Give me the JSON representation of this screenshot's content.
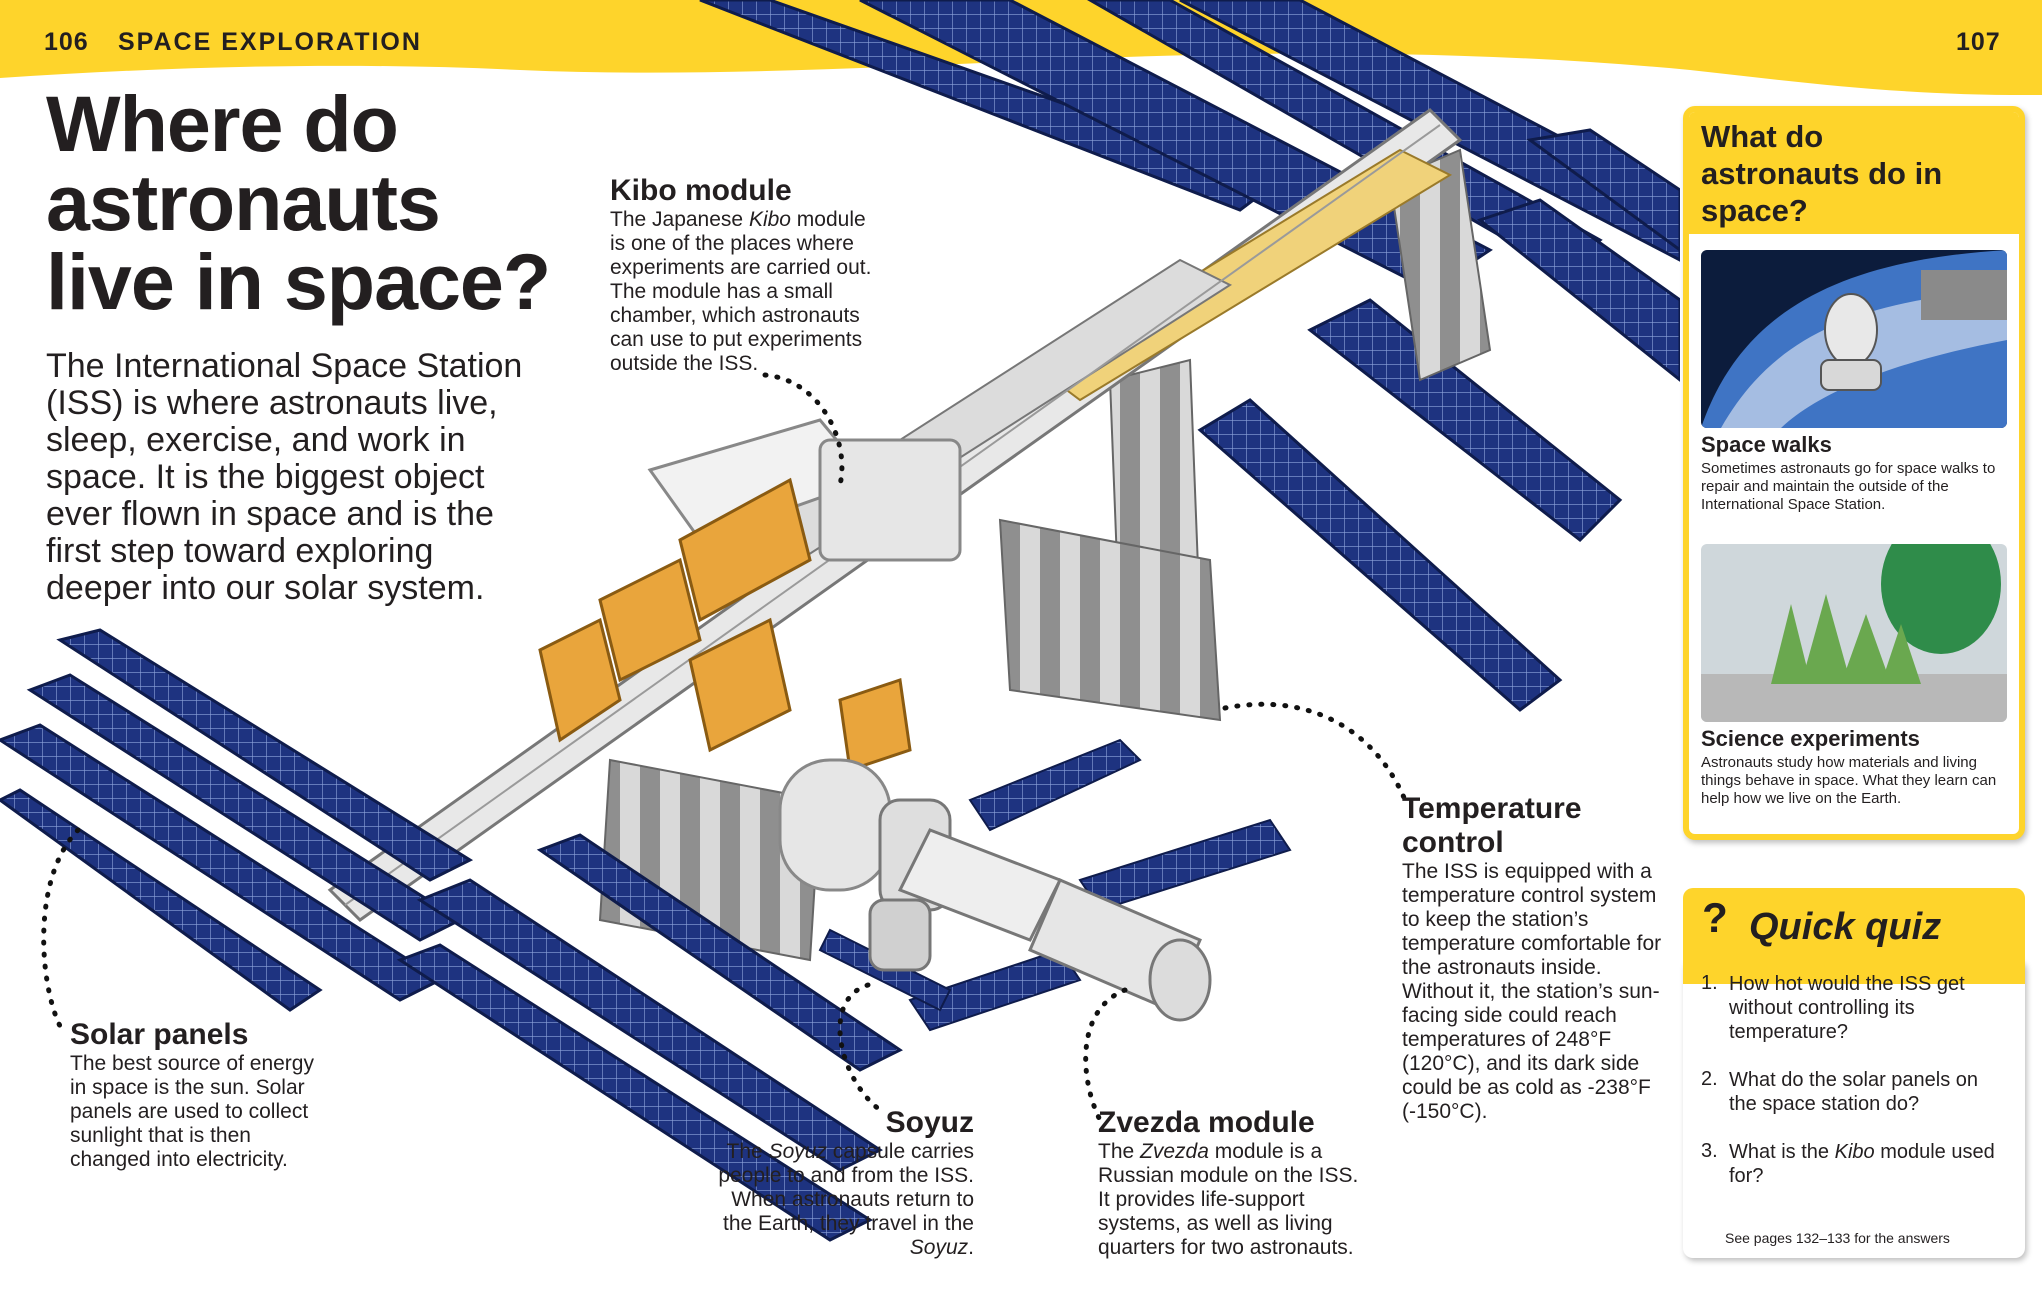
{
  "header": {
    "left_page_number": "106",
    "section_title": "SPACE EXPLORATION",
    "right_page_number": "107",
    "band_color": "#fed42b"
  },
  "main": {
    "title": "Where do astronauts live in space?",
    "intro": "The International Space Station (ISS) is where astronauts live, sleep, exercise, and work in space. It is the biggest object ever flown in space and is the first step toward exploring deeper into our solar system."
  },
  "callouts": {
    "kibo": {
      "heading": "Kibo module",
      "text_before": "The Japanese ",
      "text_italic": "Kibo",
      "text_after": " module is one of the places where experiments are carried out. The module has a small chamber, which astronauts can use to put experiments outside the ISS."
    },
    "temperature": {
      "heading": "Temperature control",
      "text": "The ISS is equipped with a temperature control system to keep the station’s temperature comfortable for the astronauts inside. Without it, the station’s sun-facing side could reach temperatures of 248°F (120°C), and its dark side could be as cold as -238°F (-150°C)."
    },
    "solar": {
      "heading": "Solar panels",
      "text": "The best source of energy in space is the sun. Solar panels are used to collect sunlight that is then changed into electricity."
    },
    "soyuz": {
      "heading": "Soyuz",
      "text_1": "The ",
      "text_italic_1": "Soyuz",
      "text_2": " capsule carries people to and from the ISS. When astronauts return to the Earth, they travel in the ",
      "text_italic_2": "Soyuz",
      "text_3": "."
    },
    "zvezda": {
      "heading": "Zvezda module",
      "text_1": "The ",
      "text_italic": "Zvezda",
      "text_2": " module is a Russian module on the ISS. It provides life-support systems, as well as living quarters for two astronauts."
    }
  },
  "sidebar": {
    "title": "What do astronauts do in space?",
    "items": [
      {
        "title": "Space walks",
        "text": "Sometimes astronauts go for space walks to repair and maintain the outside of the International Space Station."
      },
      {
        "title": "Science experiments",
        "text": "Astronauts study how materials and living things behave in space. What they learn can help how we live on the Earth."
      }
    ]
  },
  "quiz": {
    "title": "Quick quiz",
    "mark": "?",
    "questions": [
      {
        "num": "1.",
        "text": "How hot would the ISS get without controlling its temperature?"
      },
      {
        "num": "2.",
        "text": "What do the solar panels on the space station do?"
      },
      {
        "num": "3.",
        "text_before": "What is the ",
        "text_italic": "Kibo",
        "text_after": " module used for?"
      }
    ],
    "answers_note": "See pages 132–133 for the answers"
  },
  "colors": {
    "accent": "#fed42b",
    "panel_blue": "#1c2f78",
    "module_orange": "#e9a53c",
    "text": "#231f20"
  }
}
